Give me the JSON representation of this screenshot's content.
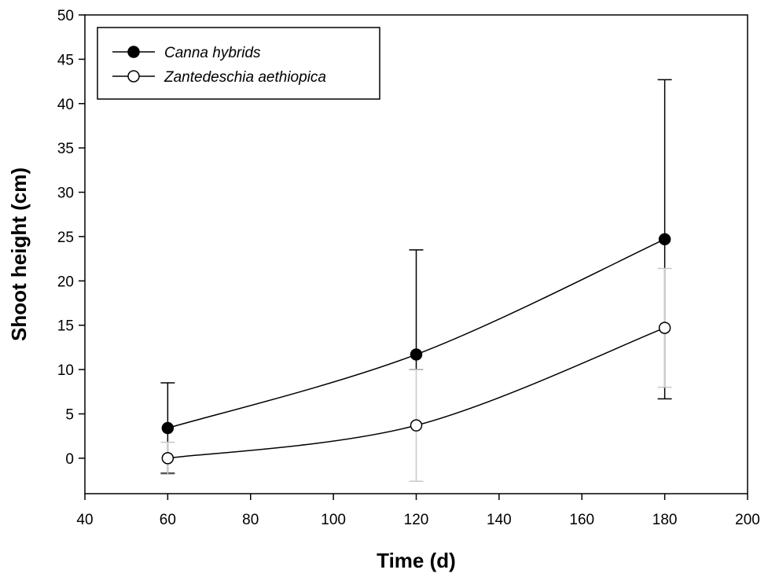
{
  "chart_data": {
    "type": "line",
    "xlabel": "Time (d)",
    "ylabel": "Shoot height (cm)",
    "xlim": [
      40,
      200
    ],
    "ylim": [
      -4,
      50
    ],
    "xticks": [
      40,
      60,
      80,
      100,
      120,
      140,
      160,
      180,
      200
    ],
    "yticks": [
      0,
      5,
      10,
      15,
      20,
      25,
      30,
      35,
      40,
      45,
      50
    ],
    "grid": false,
    "legend_position": "top-left",
    "series": [
      {
        "name": "Canna hybrids",
        "marker": "filled-circle",
        "color": "#000000",
        "error_bar_color": "#000000",
        "x": [
          60,
          120,
          180
        ],
        "y": [
          3.4,
          11.7,
          24.7
        ],
        "err_lower": [
          5.1,
          1.7,
          18.0
        ],
        "err_upper": [
          5.1,
          11.8,
          18.0
        ]
      },
      {
        "name": "Zantedeschia aethiopica",
        "marker": "open-circle",
        "color": "#000000",
        "error_bar_color": "#c8c8c8",
        "x": [
          60,
          120,
          180
        ],
        "y": [
          0.0,
          3.7,
          14.7
        ],
        "err_lower": [
          1.8,
          6.3,
          6.7
        ],
        "err_upper": [
          1.8,
          6.3,
          6.7
        ]
      }
    ]
  }
}
